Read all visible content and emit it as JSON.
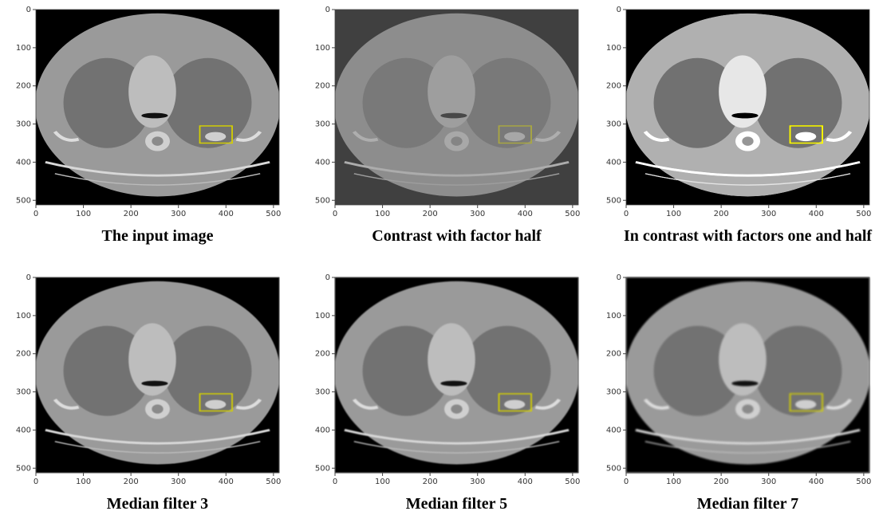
{
  "panels": [
    {
      "caption": "The input image",
      "xlim": [
        0,
        512
      ],
      "ylim": [
        512,
        0
      ],
      "xticks": [
        0,
        100,
        200,
        300,
        400,
        500
      ],
      "yticks": [
        0,
        100,
        200,
        300,
        400,
        500
      ]
    },
    {
      "caption": "Contrast with factor half",
      "xlim": [
        0,
        512
      ],
      "ylim": [
        512,
        0
      ],
      "xticks": [
        0,
        100,
        200,
        300,
        400,
        500
      ],
      "yticks": [
        0,
        100,
        200,
        300,
        400,
        500
      ]
    },
    {
      "caption": "In contrast with factors one and half",
      "xlim": [
        0,
        512
      ],
      "ylim": [
        512,
        0
      ],
      "xticks": [
        0,
        100,
        200,
        300,
        400,
        500
      ],
      "yticks": [
        0,
        100,
        200,
        300,
        400,
        500
      ]
    },
    {
      "caption": "Median filter 3",
      "xlim": [
        0,
        512
      ],
      "ylim": [
        512,
        0
      ],
      "xticks": [
        0,
        100,
        200,
        300,
        400,
        500
      ],
      "yticks": [
        0,
        100,
        200,
        300,
        400,
        500
      ]
    },
    {
      "caption": "Median filter 5",
      "xlim": [
        0,
        512
      ],
      "ylim": [
        512,
        0
      ],
      "xticks": [
        0,
        100,
        200,
        300,
        400,
        500
      ],
      "yticks": [
        0,
        100,
        200,
        300,
        400,
        500
      ]
    },
    {
      "caption": "Median filter 7",
      "xlim": [
        0,
        512
      ],
      "ylim": [
        512,
        0
      ],
      "xticks": [
        0,
        100,
        200,
        300,
        400,
        500
      ],
      "yticks": [
        0,
        100,
        200,
        300,
        400,
        500
      ]
    }
  ]
}
